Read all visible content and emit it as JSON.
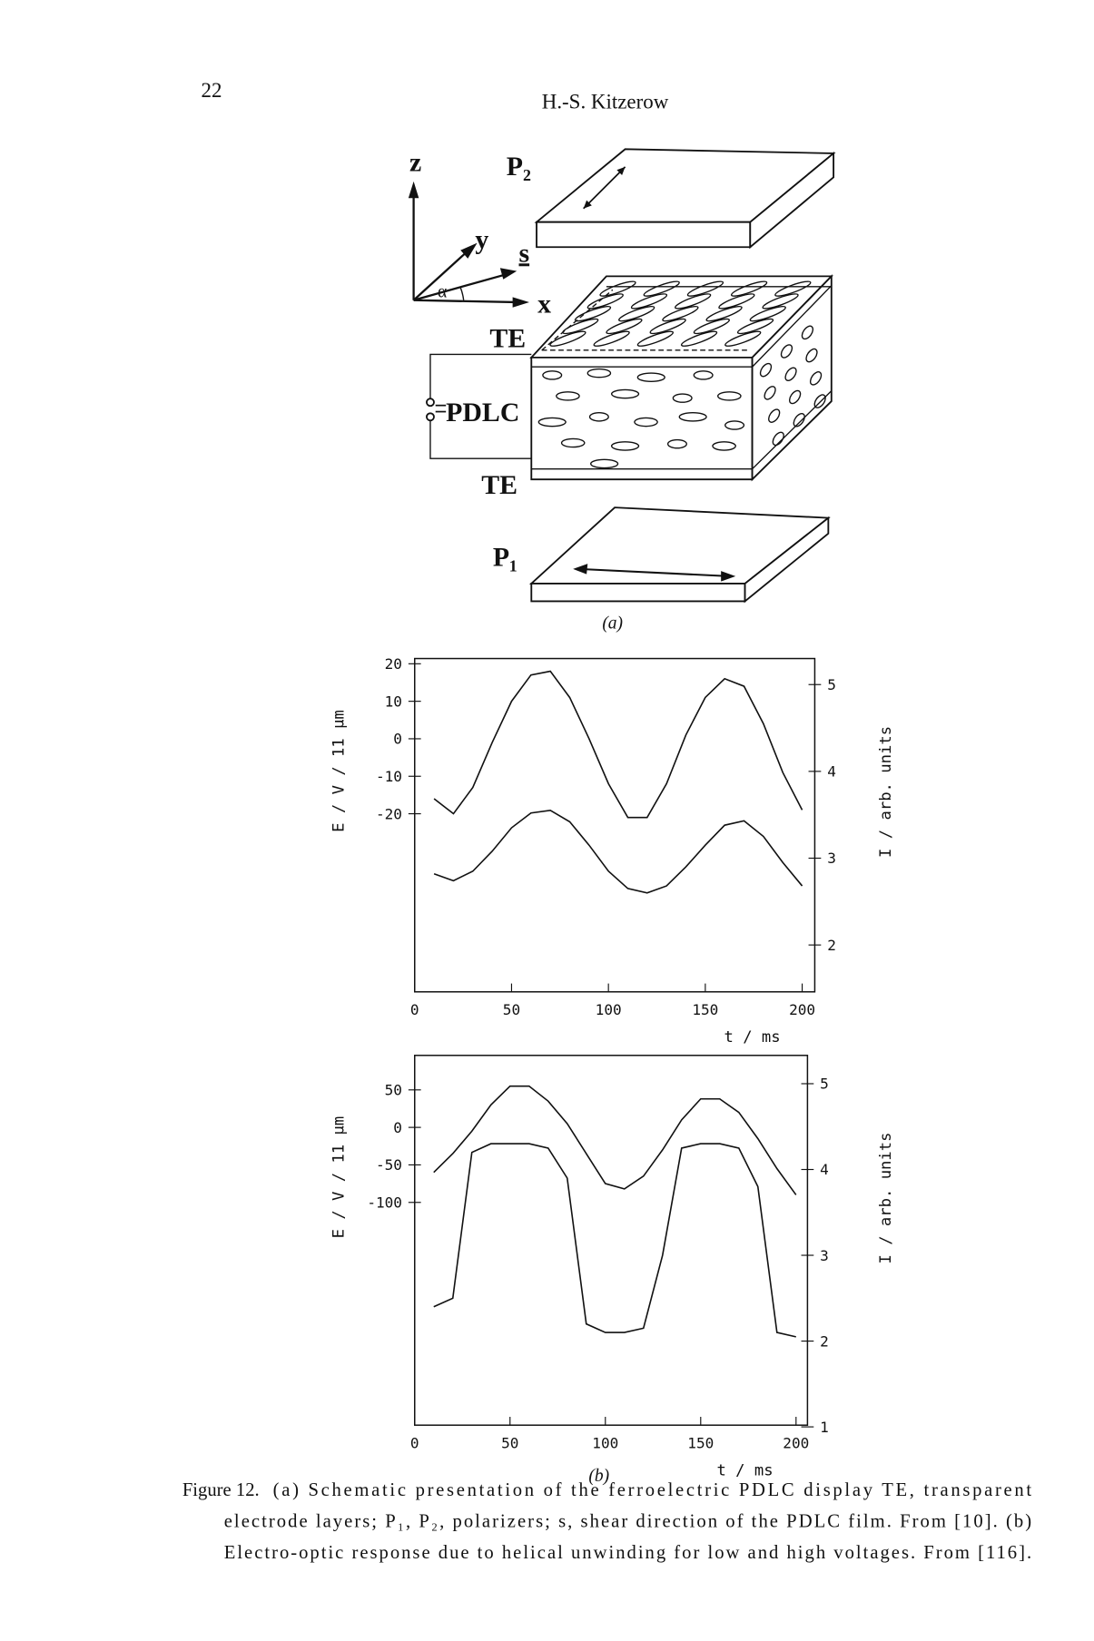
{
  "page_number": "22",
  "running_head": "H.-S. Kitzerow",
  "diagram": {
    "z": "z",
    "p2": "P₂",
    "y": "y",
    "s": "s",
    "alpha": "α",
    "x": "x",
    "te_top": "TE",
    "pdlc": "PDLC",
    "te_bottom": "TE",
    "p1": "P₁",
    "label": "(a)"
  },
  "chart_data": [
    {
      "type": "line",
      "xlabel": "t / ms",
      "ylabel": "E / V / 11 μm",
      "y2label": "I / arb. units",
      "x": [
        10,
        20,
        30,
        40,
        50,
        60,
        70,
        80,
        90,
        100,
        110,
        120,
        130,
        140,
        150,
        160,
        170,
        180,
        190,
        200
      ],
      "series": [
        {
          "name": "E",
          "color": "#111111",
          "values": [
            -16,
            -20,
            -13,
            -1,
            10,
            17,
            18,
            11,
            0,
            -12,
            -21,
            -21,
            -12,
            1,
            11,
            16,
            14,
            4,
            -9,
            -19
          ]
        },
        {
          "name": "I",
          "color": "#111111",
          "axis": "y2",
          "values": [
            2.82,
            2.74,
            2.85,
            3.08,
            3.35,
            3.52,
            3.55,
            3.42,
            3.15,
            2.85,
            2.65,
            2.6,
            2.68,
            2.9,
            3.15,
            3.38,
            3.43,
            3.25,
            2.95,
            2.68
          ]
        }
      ],
      "xlim": [
        0,
        206.5
      ],
      "xticks": [
        0,
        50,
        100,
        150,
        200
      ],
      "ylim": [
        -67.5,
        21.4
      ],
      "yticks": [
        20,
        10,
        0,
        -10,
        -20
      ],
      "y2lim": [
        1.46,
        5.3
      ],
      "y2ticks": [
        2,
        3,
        4,
        5
      ]
    },
    {
      "type": "line",
      "label": "(b)",
      "xlabel": "t / ms",
      "ylabel": "E / V / 11 μm",
      "y2label": "I / arb. units",
      "x": [
        10,
        20,
        30,
        40,
        50,
        60,
        70,
        80,
        90,
        100,
        110,
        120,
        130,
        140,
        150,
        160,
        170,
        180,
        190,
        200
      ],
      "series": [
        {
          "name": "E",
          "color": "#111111",
          "values": [
            -60,
            -35,
            -5,
            30,
            55,
            55,
            35,
            5,
            -35,
            -75,
            -82,
            -65,
            -30,
            10,
            38,
            38,
            20,
            -15,
            -55,
            -90
          ]
        },
        {
          "name": "I",
          "color": "#111111",
          "axis": "y2",
          "values": [
            2.4,
            2.5,
            4.2,
            4.3,
            4.3,
            4.3,
            4.25,
            3.9,
            2.2,
            2.1,
            2.1,
            2.15,
            3.0,
            4.25,
            4.3,
            4.3,
            4.25,
            3.8,
            2.1,
            2.05
          ]
        }
      ],
      "xlim": [
        0,
        206
      ],
      "xticks": [
        0,
        50,
        100,
        150,
        200
      ],
      "ylim": [
        -397,
        96
      ],
      "yticks": [
        50,
        0,
        -50,
        -100
      ],
      "y2lim": [
        1.02,
        5.33
      ],
      "y2ticks": [
        1,
        2,
        3,
        4,
        5
      ]
    }
  ],
  "caption": {
    "label": "Figure 12.",
    "lines": [
      "(a) Schematic presentation of the ferroelectric PDLC display TE, transparent",
      "electrode layers; P₁, P₂, polarizers; s, shear direction of the PDLC film. From [10]. (b)",
      "Electro-optic response due to helical unwinding for low and high voltages. From [116]."
    ]
  }
}
